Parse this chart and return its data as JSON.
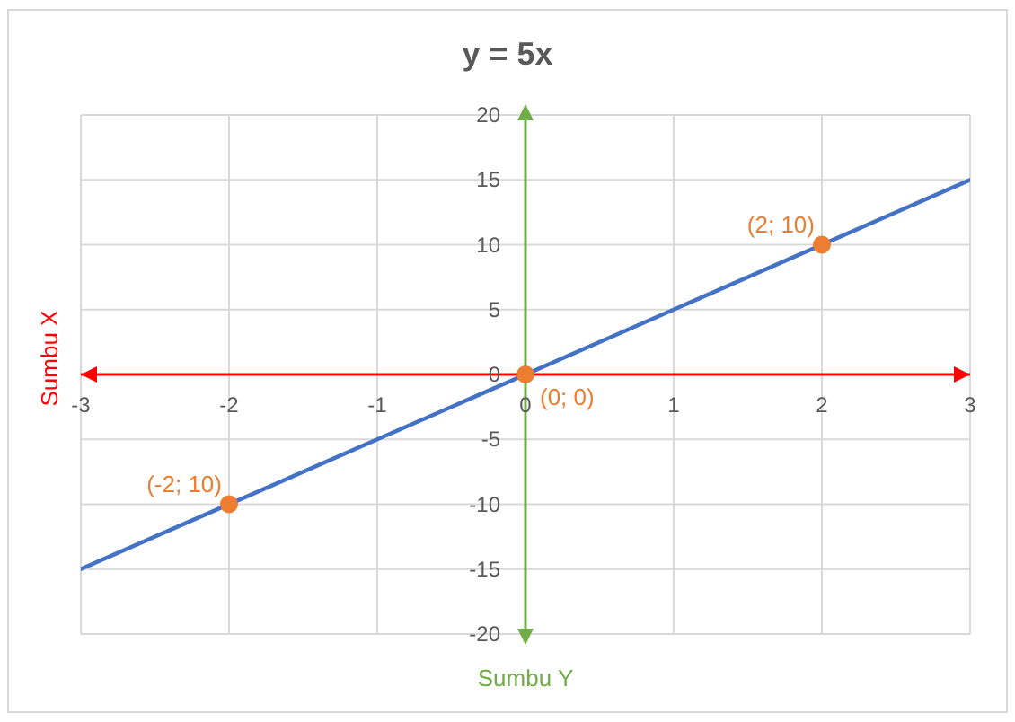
{
  "chart_data": {
    "type": "line",
    "title": "y = 5x",
    "xlabel": "Sumbu Y",
    "ylabel": "Sumbu X",
    "xlim": [
      -3,
      3
    ],
    "xticks": [
      -3,
      -2,
      -1,
      0,
      1,
      2,
      3
    ],
    "ylim": [
      -20,
      20
    ],
    "yticks": [
      -20,
      -15,
      -10,
      -5,
      0,
      5,
      10,
      15,
      20
    ],
    "grid": true,
    "series": [
      {
        "color": "#4472c4",
        "x": [
          -3,
          3
        ],
        "values": [
          -15,
          15
        ],
        "marker": "none"
      },
      {
        "type": "scatter",
        "color": "#ed7d31",
        "x": [
          -2,
          0,
          2
        ],
        "values": [
          -10,
          0,
          10
        ],
        "marker": "circle",
        "value_labels": [
          "(-2; 10)",
          "(0; 0)",
          "(2; 10)"
        ]
      }
    ]
  }
}
